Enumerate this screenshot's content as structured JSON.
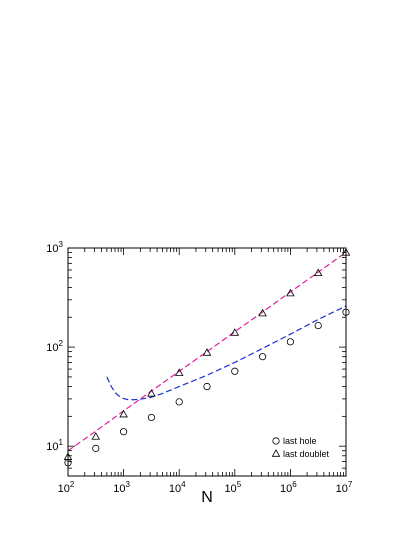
{
  "chart_data": {
    "type": "scatter",
    "title": "",
    "xlabel": "N",
    "ylabel": "",
    "xscale": "log",
    "yscale": "log",
    "xlim": [
      100,
      10000000
    ],
    "ylim": [
      5,
      1000
    ],
    "grid": false,
    "legend_position": "bottom-right",
    "x_ticks": [
      {
        "base": "10",
        "exp": "2"
      },
      {
        "base": "10",
        "exp": "3"
      },
      {
        "base": "10",
        "exp": "4"
      },
      {
        "base": "10",
        "exp": "5"
      },
      {
        "base": "10",
        "exp": "6"
      },
      {
        "base": "10",
        "exp": "7"
      }
    ],
    "y_ticks": [
      {
        "base": "10",
        "exp": "1"
      },
      {
        "base": "10",
        "exp": "2"
      },
      {
        "base": "10",
        "exp": "3"
      }
    ],
    "series": [
      {
        "name": "last hole",
        "marker": "circle",
        "color": "#000000",
        "x": [
          100,
          316,
          1000,
          3162,
          10000,
          31623,
          100000,
          316228,
          1000000,
          3162278,
          10000000
        ],
        "y": [
          6.8,
          9.5,
          14,
          19.5,
          28,
          40,
          57,
          80,
          113,
          165,
          225
        ]
      },
      {
        "name": "last doublet",
        "marker": "triangle",
        "color": "#000000",
        "x": [
          100,
          316,
          1000,
          3162,
          10000,
          31623,
          100000,
          316228,
          1000000,
          3162278,
          10000000
        ],
        "y": [
          7.8,
          12.5,
          21,
          34,
          55,
          88,
          140,
          220,
          350,
          560,
          900
        ]
      }
    ],
    "curves": [
      {
        "style": "dashed",
        "color": "#e0209a",
        "x": [
          100,
          316,
          1000,
          3162,
          10000,
          31623,
          100000,
          316228,
          1000000,
          3162278,
          10000000
        ],
        "y": [
          9,
          14.2,
          22.7,
          36,
          57,
          90,
          143,
          226,
          360,
          570,
          905
        ]
      },
      {
        "style": "dashed",
        "color": "#1a2fd4",
        "x": [
          500,
          600,
          700,
          800,
          900,
          1000,
          1200,
          1500,
          2000,
          3000,
          5000,
          10000,
          31623,
          100000,
          316228,
          1000000,
          3162278,
          10000000
        ],
        "y": [
          50,
          40,
          35,
          32.5,
          31,
          30.2,
          29.5,
          29.4,
          29.8,
          31,
          34,
          40,
          52,
          70,
          97,
          135,
          190,
          260
        ]
      }
    ]
  }
}
